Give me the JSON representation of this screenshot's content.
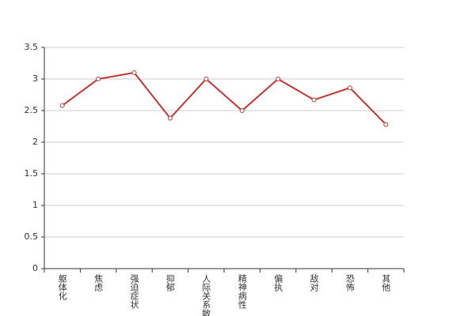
{
  "chart_data": {
    "type": "line",
    "categories": [
      "躯体化",
      "焦虑",
      "强迫症状",
      "抑郁",
      "人际关系敏感",
      "精神病性",
      "偏执",
      "敌对",
      "恐怖",
      "其他"
    ],
    "series": [
      {
        "color": "#c23531",
        "values": [
          2.58,
          3.0,
          3.1,
          2.38,
          3.0,
          2.5,
          3.0,
          2.67,
          2.86,
          2.28
        ]
      }
    ],
    "ylim": [
      0,
      3.5
    ],
    "yticks": [
      0,
      0.5,
      1,
      1.5,
      2,
      2.5,
      3,
      3.5
    ],
    "grid": true
  }
}
